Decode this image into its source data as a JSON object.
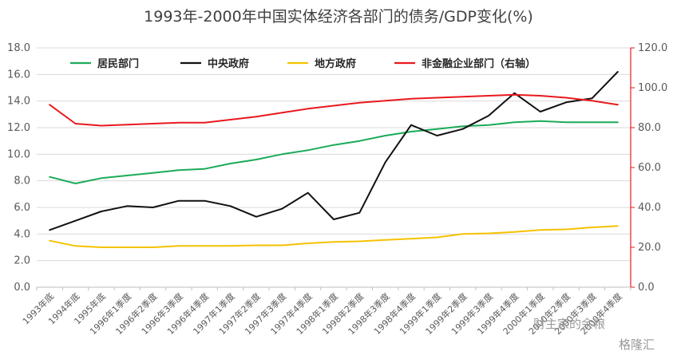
{
  "chart_data": {
    "type": "line",
    "title": "1993年-2000年中国实体经济各部门的债务/GDP变化(%)",
    "xlabel": "",
    "ylabel": "",
    "categories": [
      "1993年底",
      "1994年底",
      "1995年底",
      "1996年1季度",
      "1996年2季度",
      "1996年3季度",
      "1996年4季度",
      "1997年1季度",
      "1997年2季度",
      "1997年3季度",
      "1997年4季度",
      "1998年1季度",
      "1998年2季度",
      "1998年3季度",
      "1998年4季度",
      "1999年1季度",
      "1999年2季度",
      "1999年3季度",
      "1999年4季度",
      "2000年1季度",
      "2000年2季度",
      "2000年3季度",
      "2000年4季度"
    ],
    "ylim": [
      0,
      18
    ],
    "yticks": [
      "0.0",
      "2.0",
      "4.0",
      "6.0",
      "8.0",
      "10.0",
      "12.0",
      "14.0",
      "16.0",
      "18.0"
    ],
    "y2lim": [
      0,
      120
    ],
    "y2ticks": [
      "0.0",
      "20.0",
      "40.0",
      "60.0",
      "80.0",
      "100.0",
      "120.0"
    ],
    "grid": true,
    "legend_position": "top",
    "series": [
      {
        "name": "居民部门",
        "axis": "left",
        "color": "#1aab58",
        "values": [
          8.3,
          7.8,
          8.2,
          8.4,
          8.6,
          8.8,
          8.9,
          9.3,
          9.6,
          10.0,
          10.3,
          10.7,
          11.0,
          11.4,
          11.7,
          11.9,
          12.1,
          12.2,
          12.4,
          12.5,
          12.4,
          12.4,
          12.4
        ]
      },
      {
        "name": "中央政府",
        "axis": "left",
        "color": "#111111",
        "values": [
          4.3,
          5.0,
          5.7,
          6.1,
          6.0,
          6.5,
          6.5,
          6.1,
          5.3,
          5.9,
          7.1,
          5.1,
          5.6,
          9.4,
          12.2,
          11.4,
          11.9,
          12.9,
          14.6,
          13.2,
          13.9,
          14.2,
          16.2
        ]
      },
      {
        "name": "地方政府",
        "axis": "left",
        "color": "#f5c200",
        "values": [
          3.5,
          3.1,
          3.0,
          3.0,
          3.0,
          3.1,
          3.1,
          3.1,
          3.15,
          3.15,
          3.3,
          3.4,
          3.45,
          3.55,
          3.65,
          3.75,
          4.0,
          4.05,
          4.15,
          4.3,
          4.35,
          4.5,
          4.6
        ]
      },
      {
        "name": "非金融企业部门（右轴）",
        "axis": "right",
        "color": "#e8191d",
        "values": [
          91.5,
          82.0,
          81.0,
          81.5,
          82.0,
          82.5,
          82.5,
          84.0,
          85.5,
          87.5,
          89.5,
          91.0,
          92.5,
          93.5,
          94.5,
          95.0,
          95.5,
          96.0,
          96.5,
          96.0,
          95.0,
          93.5,
          91.5
        ]
      }
    ]
  },
  "watermark": {
    "line1": "财主家的余粮",
    "line2": "格隆汇"
  }
}
